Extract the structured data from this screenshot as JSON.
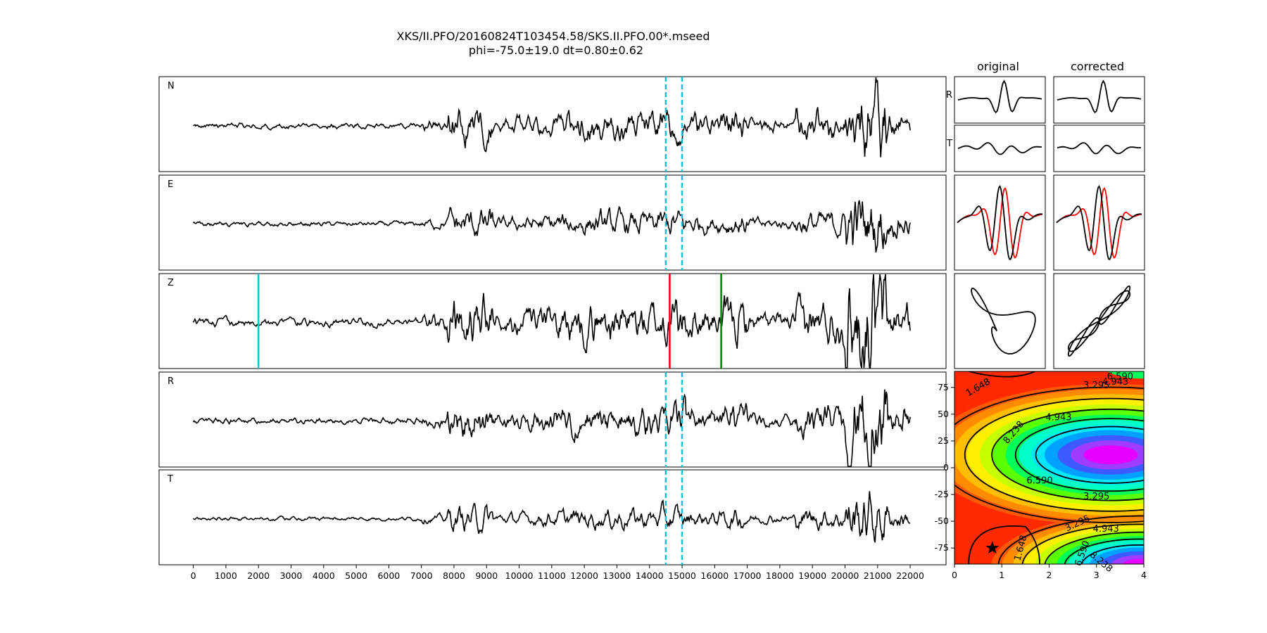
{
  "figure": {
    "title_line1": "XKS/II.PFO/20160824T103454.58/SKS.II.PFO.00*.mseed",
    "title_line2": "phi=-75.0±19.0 dt=0.80±0.62",
    "column_headers": {
      "original": "original",
      "corrected": "corrected"
    }
  },
  "chart_data": [
    {
      "type": "line",
      "title": "waveforms",
      "channels": [
        "N",
        "E",
        "Z",
        "R",
        "T"
      ],
      "x_ticks": [
        0,
        1000,
        2000,
        3000,
        4000,
        5000,
        6000,
        7000,
        8000,
        9000,
        10000,
        11000,
        12000,
        13000,
        14000,
        15000,
        16000,
        17000,
        18000,
        19000,
        20000,
        21000,
        22000
      ],
      "xlim": [
        -1050,
        23100
      ],
      "samples": [
        0,
        22000
      ],
      "window_markers": {
        "channels": [
          "N",
          "E",
          "R",
          "T"
        ],
        "x": [
          14500,
          15000
        ],
        "style": "dashed",
        "color": "#17becf"
      },
      "phase_markers_Z": [
        {
          "x": 2000,
          "color": "#17becf"
        },
        {
          "x": 14620,
          "color": "#ff0000"
        },
        {
          "x": 16200,
          "color": "#008000"
        }
      ],
      "trace_color": "#000000"
    },
    {
      "type": "line",
      "title": "particle panels",
      "rows": [
        "R",
        "T"
      ],
      "columns": [
        "original",
        "corrected"
      ],
      "overlay_color": "#ff0000"
    },
    {
      "type": "heatmap",
      "title": "error surface",
      "x_ticks": [
        0,
        1,
        2,
        3,
        4
      ],
      "y_ticks": [
        75,
        50,
        25,
        0,
        -25,
        -50,
        -75
      ],
      "xlim": [
        0,
        4
      ],
      "ylim": [
        -90,
        90
      ],
      "contour_labels": [
        "1.648",
        "3.295",
        "4.943",
        "6.590",
        "8.238"
      ],
      "best": {
        "dt": 0.8,
        "phi": -75
      },
      "colormap": "hsv"
    }
  ]
}
